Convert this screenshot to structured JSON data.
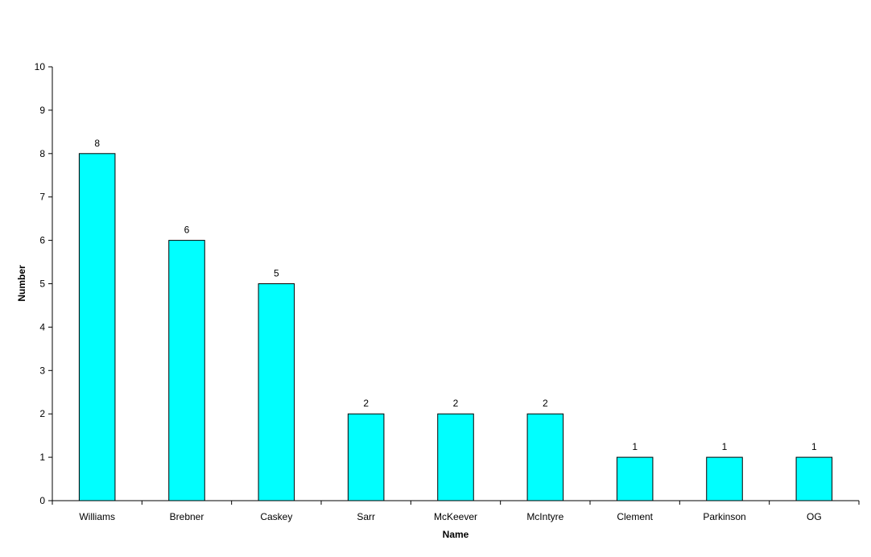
{
  "chart_data": {
    "type": "bar",
    "categories": [
      "Williams",
      "Brebner",
      "Caskey",
      "Sarr",
      "McKeever",
      "McIntyre",
      "Clement",
      "Parkinson",
      "OG"
    ],
    "values": [
      8,
      6,
      5,
      2,
      2,
      2,
      1,
      1,
      1
    ],
    "xlabel": "Name",
    "ylabel": "Number",
    "ylim": [
      0,
      10
    ],
    "yticks": [
      0,
      1,
      2,
      3,
      4,
      5,
      6,
      7,
      8,
      9,
      10
    ],
    "grid": false,
    "legend": "none",
    "data_labels": true,
    "bar_color": "#00FFFF",
    "bar_edge_color": "#000000"
  }
}
